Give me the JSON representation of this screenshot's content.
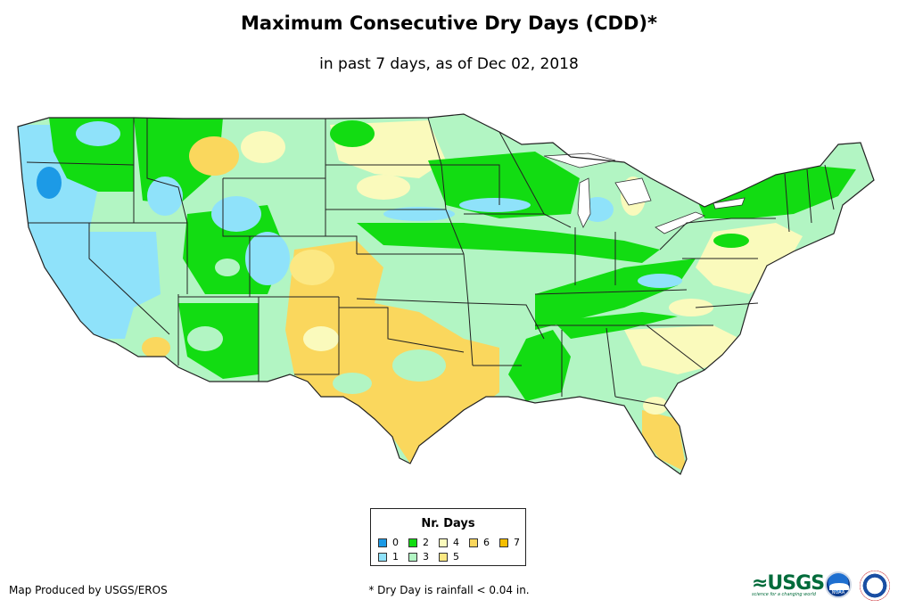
{
  "title": "Maximum Consecutive Dry Days (CDD)*",
  "subtitle": "in past 7 days, as of Dec 02, 2018",
  "legend": {
    "title": "Nr. Days",
    "items": [
      {
        "label": "0",
        "color": "#1c9ae6"
      },
      {
        "label": "1",
        "color": "#8fe2fa"
      },
      {
        "label": "2",
        "color": "#12dc12"
      },
      {
        "label": "3",
        "color": "#b2f5c3"
      },
      {
        "label": "4",
        "color": "#fafabc"
      },
      {
        "label": "5",
        "color": "#fce883"
      },
      {
        "label": "6",
        "color": "#fad75d"
      },
      {
        "label": "7",
        "color": "#f5be00"
      }
    ]
  },
  "credit": "Map Produced by USGS/EROS",
  "footnote": "* Dry Day is rainfall < 0.04 in.",
  "logos": {
    "usgs_mark": "≈USGS",
    "usgs_tagline": "science for a changing world",
    "noaa_text": "NOAA"
  }
}
